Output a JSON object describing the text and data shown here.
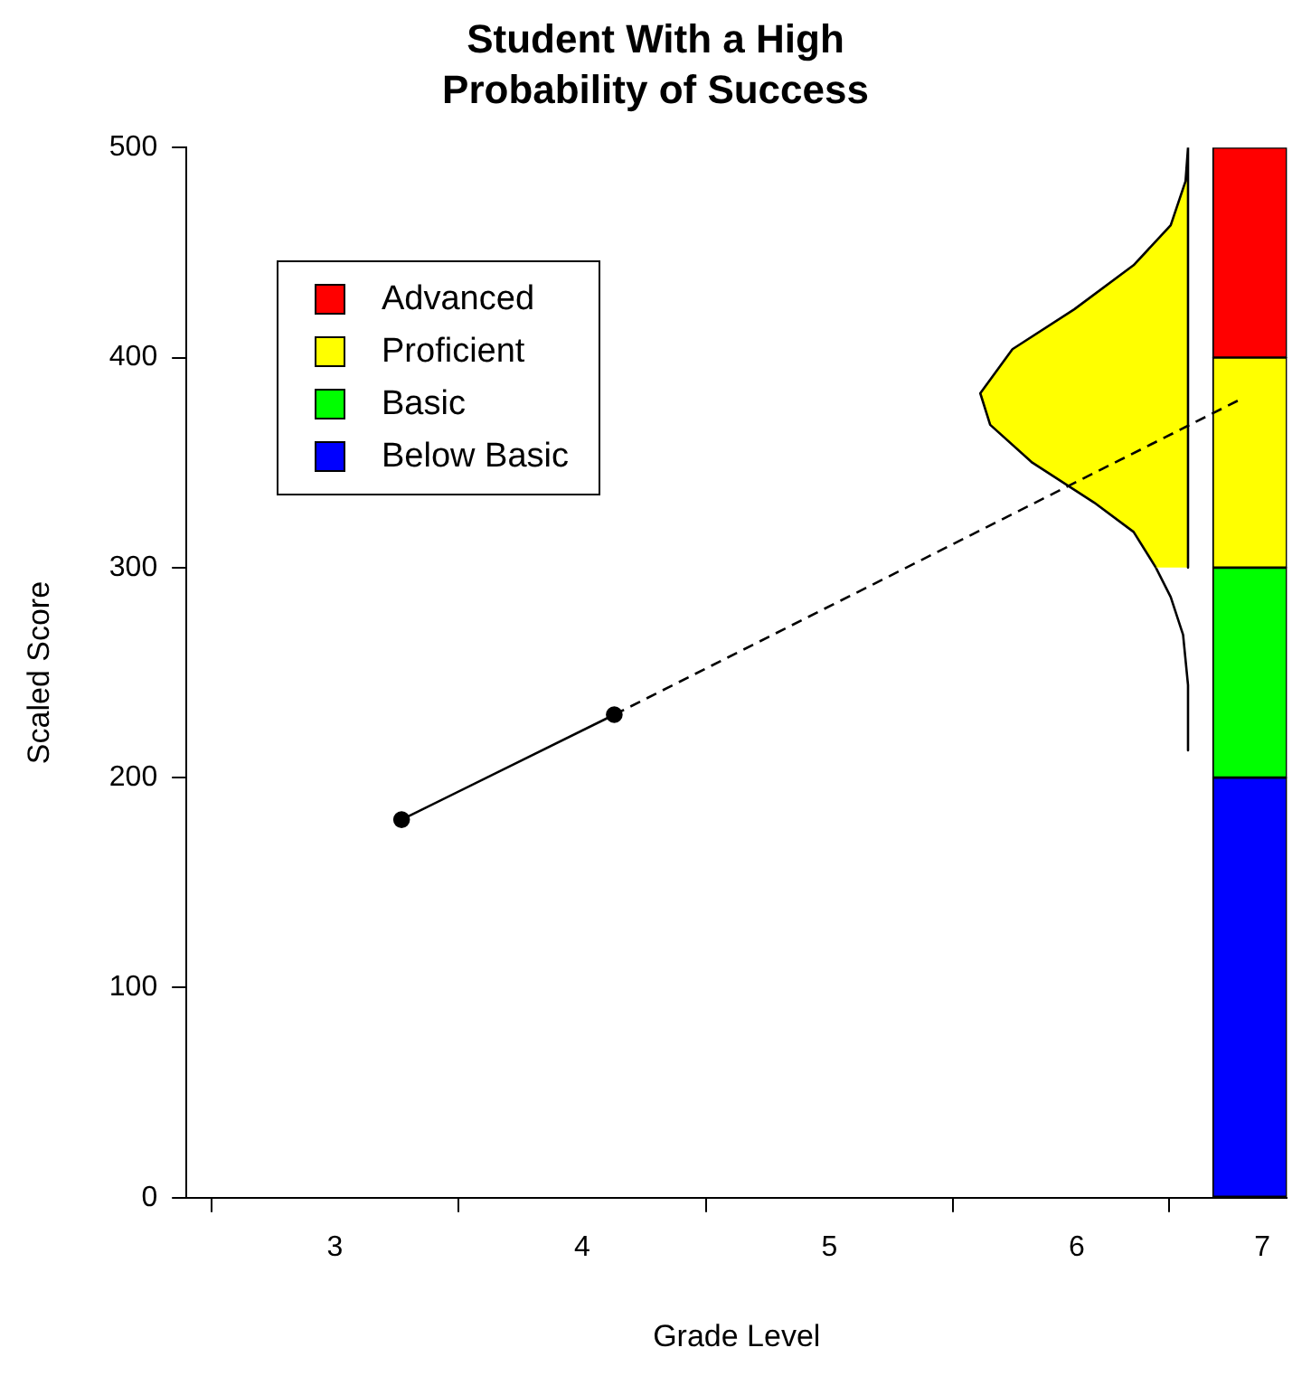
{
  "chart_data": {
    "type": "line",
    "title": "Student With a High Probability of Success",
    "xlabel": "Grade Level",
    "ylabel": "Scaled Score",
    "xlim": [
      2.4,
      6.85
    ],
    "xticks": [
      3,
      4,
      5,
      6,
      {
        "value": 6.75,
        "label": "7"
      }
    ],
    "ylim": [
      0,
      500
    ],
    "yticks": [
      0,
      100,
      200,
      300,
      400,
      500
    ],
    "grid": false,
    "legend": "top left",
    "series": [
      {
        "color": "#000000",
        "x": [
          3.27,
          4.13
        ],
        "values": [
          180,
          230
        ],
        "marker": "circle",
        "line_style": "solid"
      },
      {
        "color": "#000000",
        "x": [
          4.13,
          6.66
        ],
        "values": [
          230,
          380
        ],
        "marker": "none",
        "line_style": "dashed"
      },
      {
        "type": "area",
        "color": "#ffff00",
        "x": [
          6.32,
          6.23,
          6.07,
          5.82,
          5.65,
          5.61,
          5.74,
          5.99,
          6.23,
          6.38,
          6.44,
          6.45,
          6.45
        ],
        "values": [
          300,
          317,
          331,
          350,
          368,
          383,
          404,
          423,
          444,
          463,
          484,
          500,
          300
        ],
        "marker": "none",
        "line_style": "solid"
      },
      {
        "color": "#000000",
        "x": [
          6.32,
          6.38,
          6.43,
          6.45,
          6.45
        ],
        "values": [
          300,
          286,
          268,
          244,
          213
        ],
        "marker": "none",
        "line_style": "solid"
      },
      {
        "type": "bar",
        "name": "Advanced",
        "color": "#ff0000",
        "x": [
          6.7
        ],
        "values": [
          100
        ],
        "base": [
          400
        ]
      },
      {
        "type": "bar",
        "name": "Proficient",
        "color": "#ffff00",
        "x": [
          6.7
        ],
        "values": [
          100
        ],
        "base": [
          300
        ]
      },
      {
        "type": "bar",
        "name": "Basic",
        "color": "#00ff00",
        "x": [
          6.7
        ],
        "values": [
          100
        ],
        "base": [
          200
        ]
      },
      {
        "type": "bar",
        "name": "Below Basic",
        "color": "#0000ff",
        "x": [
          6.7
        ],
        "values": [
          200
        ],
        "base": [
          0
        ]
      }
    ]
  }
}
